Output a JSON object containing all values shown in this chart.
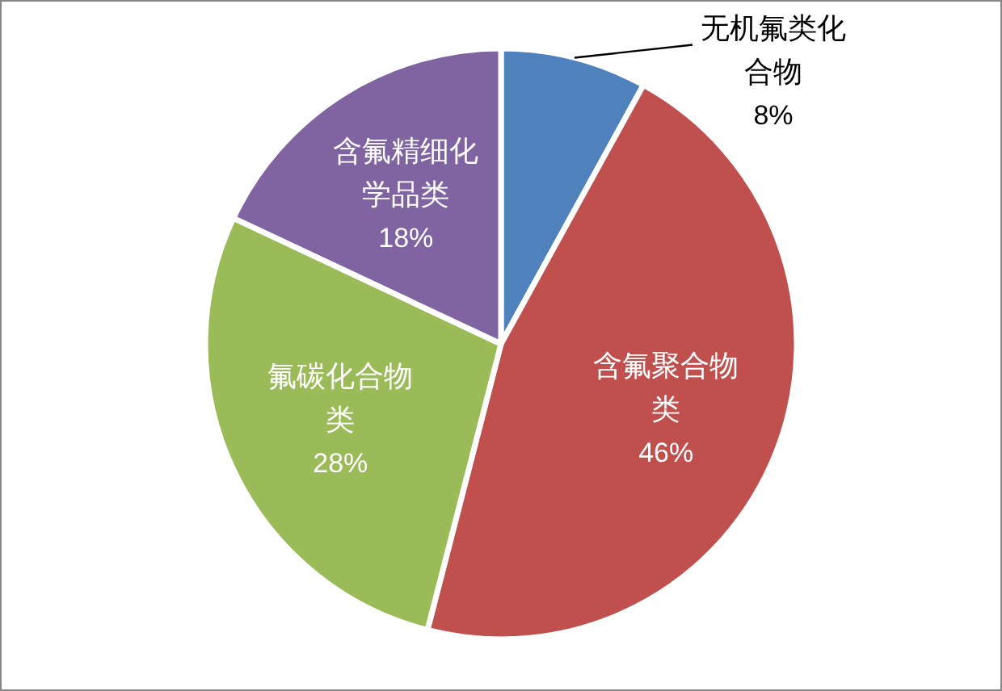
{
  "chart_data": {
    "type": "pie",
    "categories": [
      "无机氟类化合物",
      "含氟聚合物类",
      "氟碳化合物类",
      "含氟精细化学品类"
    ],
    "values": [
      8,
      46,
      28,
      18
    ],
    "colors": [
      "#4f81bd",
      "#c0504d",
      "#9bbb59",
      "#8064a2"
    ],
    "value_labels": [
      "8%",
      "46%",
      "28%",
      "18%"
    ]
  }
}
